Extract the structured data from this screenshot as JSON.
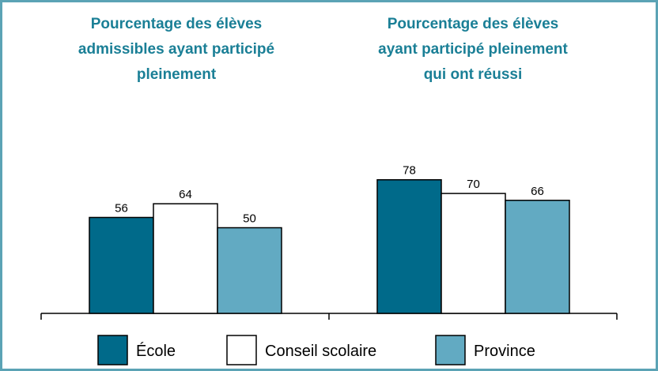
{
  "chart_data": {
    "type": "bar",
    "categories": [
      "Pourcentage des élèves admissibles ayant participé pleinement",
      "Pourcentage des élèves ayant participé pleinement qui ont réussi"
    ],
    "series": [
      {
        "name": "École",
        "color": "#006a8a",
        "values": [
          56,
          78
        ]
      },
      {
        "name": "Conseil scolaire",
        "color": "#ffffff",
        "values": [
          64,
          70
        ]
      },
      {
        "name": "Province",
        "color": "#62aac2",
        "values": [
          50,
          66
        ]
      }
    ]
  }
}
